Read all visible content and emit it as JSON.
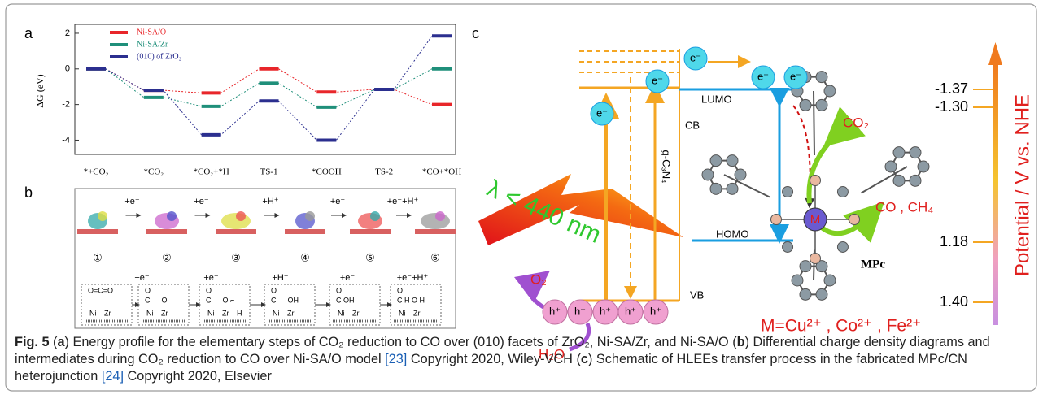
{
  "chart_data": {
    "type": "line",
    "panel_label": "a",
    "ylabel": "ΔG (eV)",
    "categories": [
      "*+CO₂",
      "*CO₂",
      "*CO₂+*H",
      "TS-1",
      "*COOH",
      "TS-2",
      "*CO+*OH"
    ],
    "series": [
      {
        "name": "Ni-SA/O",
        "color": "#e8262a",
        "values": [
          0,
          -1.2,
          -1.35,
          0,
          -1.3,
          -1.15,
          -2.0
        ]
      },
      {
        "name": "Ni-SA/Zr",
        "color": "#1f8f7a",
        "values": [
          0,
          -1.6,
          -2.1,
          -0.8,
          -2.15,
          -1.15,
          0
        ]
      },
      {
        "name": "(010) of ZrO₂",
        "color": "#2b2f8f",
        "values": [
          0,
          -1.2,
          -3.7,
          -1.8,
          -4.0,
          -1.15,
          1.85
        ]
      }
    ],
    "ylim": [
      -4.8,
      2.5
    ],
    "yticks": [
      2,
      0,
      -2,
      -4
    ]
  },
  "panel_b": {
    "label": "b",
    "numbers": [
      "①",
      "②",
      "③",
      "④",
      "⑤",
      "⑥"
    ],
    "steps": [
      "+e⁻",
      "+e⁻",
      "+H⁺",
      "+e⁻",
      "+e⁻+H⁺"
    ],
    "structures": [
      {
        "lines": [
          "O=C=O"
        ],
        "atoms": [
          "Ni",
          "Zr"
        ]
      },
      {
        "lines": [
          "O",
          "C — O"
        ],
        "atoms": [
          "Ni",
          "Zr"
        ]
      },
      {
        "lines": [
          "O",
          "C — O ⌐"
        ],
        "atoms": [
          "Ni",
          "Zr",
          "H"
        ]
      },
      {
        "lines": [
          "O",
          "C — OH"
        ],
        "atoms": [
          "Ni",
          "Zr"
        ]
      },
      {
        "lines": [
          "O",
          "C    OH"
        ],
        "atoms": [
          "Ni",
          "Zr"
        ]
      },
      {
        "lines": [
          "O",
          "C  H O H"
        ],
        "atoms": [
          "Ni",
          "Zr"
        ]
      }
    ]
  },
  "panel_c": {
    "label": "c",
    "lumo": "LUMO",
    "homo": "HOMO",
    "cb": "CB",
    "vb": "VB",
    "semiconductor": "g-C₃N₄",
    "light": "λ < 440 nm",
    "electrons": [
      "e⁻",
      "e⁻",
      "e⁻",
      "e⁻",
      "e⁻"
    ],
    "holes": [
      "h⁺",
      "h⁺",
      "h⁺",
      "h⁺",
      "h⁺"
    ],
    "o2": "O₂",
    "h2o": "H₂O",
    "co2": "CO₂",
    "products": "CO , CH₄",
    "metal": "M",
    "mpc": "MPc",
    "metals": "M=Cu²⁺ , Co²⁺ , Fe²⁺",
    "potential_title": "Potential / V vs. NHE",
    "potential_labels": [
      "-1.37",
      "-1.30",
      "1.18",
      "1.40"
    ]
  },
  "caption": {
    "label": "Fig. 5",
    "parts": [
      " (",
      "a",
      ") Energy profile for the elementary steps of CO₂ reduction to CO over (010) facets of ZrO₂, Ni-SA/Zr, and Ni-SA/O (",
      "b",
      ") Differential charge density diagrams and intermediates during CO₂ reduction to CO over Ni-SA/O model ",
      "[23]",
      " Copyright 2020, Wiley-VCH (",
      "c",
      ") Schematic of HLEEs transfer process in the fabricated MPc/CN heterojunction ",
      "[24]",
      " Copyright 2020, Elsevier"
    ]
  }
}
